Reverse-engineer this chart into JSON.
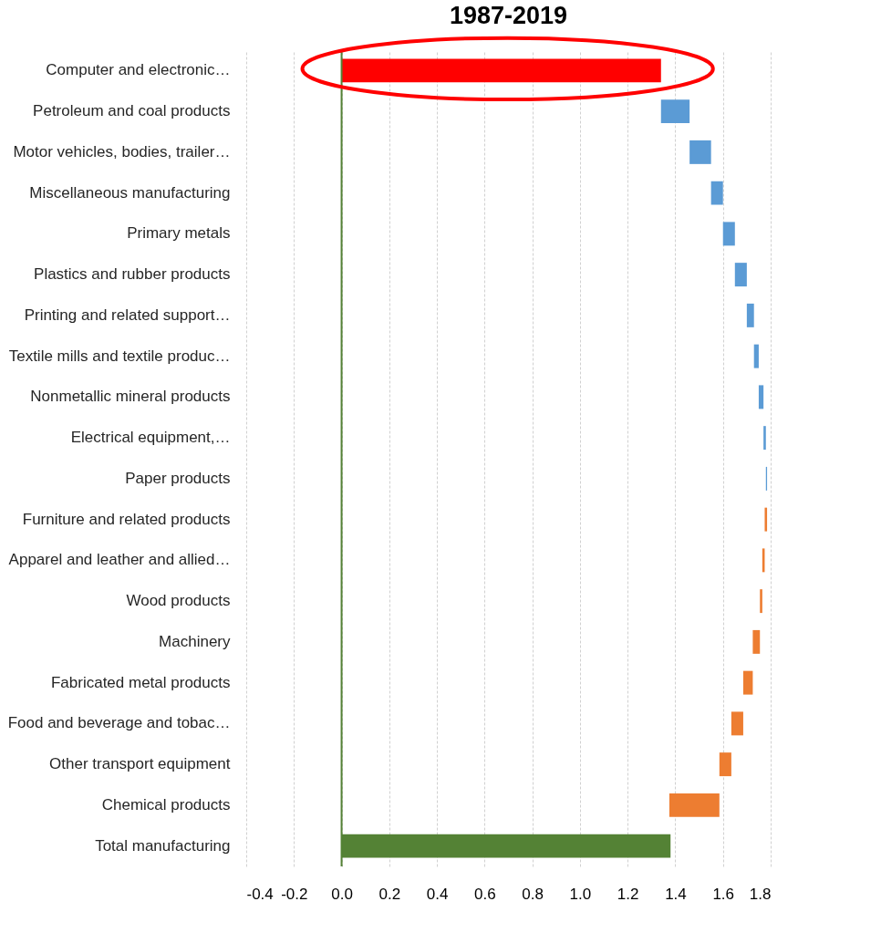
{
  "chart_data": {
    "type": "bar",
    "orientation": "horizontal",
    "title": "1987-2019",
    "categories": [
      "Computer and electronic…",
      "Petroleum and coal products",
      "Motor vehicles, bodies, trailer…",
      "Miscellaneous manufacturing",
      "Primary metals",
      "Plastics and rubber products",
      "Printing and related support…",
      "Textile mills and textile produc…",
      "Nonmetallic mineral products",
      "Electrical equipment,…",
      "Paper products",
      "Furniture and related products",
      "Apparel and leather and allied…",
      "Wood products",
      "Machinery",
      "Fabricated metal products",
      "Food and beverage and tobac…",
      "Other transport equipment",
      "Chemical products",
      "Total manufacturing"
    ],
    "values": [
      1.34,
      0.12,
      0.09,
      0.05,
      0.05,
      0.05,
      0.03,
      0.02,
      0.02,
      0.01,
      0.005,
      -0.01,
      -0.01,
      -0.01,
      -0.03,
      -0.04,
      -0.05,
      -0.05,
      -0.21,
      1.38
    ],
    "base": [
      0,
      1.34,
      1.46,
      1.55,
      1.6,
      1.65,
      1.7,
      1.73,
      1.75,
      1.77,
      1.78,
      1.785,
      1.775,
      1.765,
      1.755,
      1.725,
      1.685,
      1.635,
      1.585,
      0
    ],
    "colors": [
      "#ff0000",
      "#5b9bd5",
      "#5b9bd5",
      "#5b9bd5",
      "#5b9bd5",
      "#5b9bd5",
      "#5b9bd5",
      "#5b9bd5",
      "#5b9bd5",
      "#5b9bd5",
      "#5b9bd5",
      "#ed7d31",
      "#ed7d31",
      "#ed7d31",
      "#ed7d31",
      "#ed7d31",
      "#ed7d31",
      "#ed7d31",
      "#ed7d31",
      "#548235"
    ],
    "xlim": [
      -0.4,
      1.8
    ],
    "xticks": [
      {
        "value": -0.4,
        "label": "-0.4"
      },
      {
        "value": -0.2,
        "label": "-0.2"
      },
      {
        "value": 0,
        "label": "0.0"
      },
      {
        "value": 0.2,
        "label": "0.2"
      },
      {
        "value": 0.4,
        "label": "0.4"
      },
      {
        "value": 0.6,
        "label": "0.6"
      },
      {
        "value": 0.8,
        "label": "0.8"
      },
      {
        "value": 1,
        "label": "1.0"
      },
      {
        "value": 1.2,
        "label": "1.2"
      },
      {
        "value": 1.4,
        "label": "1.4"
      },
      {
        "value": 1.6,
        "label": "1.6"
      },
      {
        "value": 1.8,
        "label": "1.8"
      }
    ],
    "ref_lines": [
      {
        "axis": "x",
        "value": 0,
        "color": "#548235"
      }
    ],
    "grid": "x"
  }
}
